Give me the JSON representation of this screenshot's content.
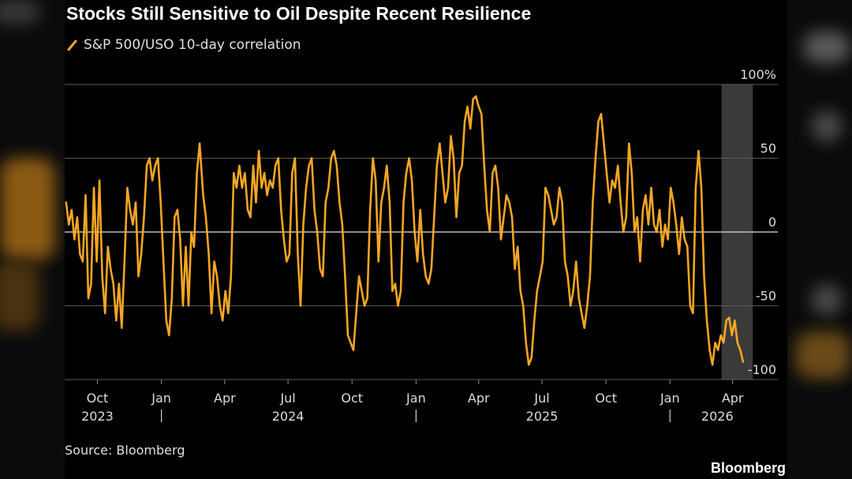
{
  "chart_data": {
    "type": "line",
    "title": "Stocks Still Sensitive to Oil Despite Recent Resilience",
    "legend": "S&P 500/USO 10-day correlation",
    "source": "Source: Bloomberg",
    "brand": "Bloomberg",
    "ylim": [
      -100,
      100
    ],
    "yticks": [
      {
        "value": 100,
        "label": "100%"
      },
      {
        "value": 50,
        "label": "50"
      },
      {
        "value": 0,
        "label": "0"
      },
      {
        "value": -50,
        "label": "-50"
      },
      {
        "value": -100,
        "label": "-100"
      }
    ],
    "xlim": [
      "2023-08-15",
      "2026-06-05"
    ],
    "month_ticks": [
      {
        "date": "2023-10-01",
        "label": "Oct"
      },
      {
        "date": "2024-01-01",
        "label": "Jan"
      },
      {
        "date": "2024-04-01",
        "label": "Apr"
      },
      {
        "date": "2024-07-01",
        "label": "Jul"
      },
      {
        "date": "2024-10-01",
        "label": "Oct"
      },
      {
        "date": "2025-01-01",
        "label": "Jan"
      },
      {
        "date": "2025-04-01",
        "label": "Apr"
      },
      {
        "date": "2025-07-01",
        "label": "Jul"
      },
      {
        "date": "2025-10-01",
        "label": "Oct"
      },
      {
        "date": "2026-01-01",
        "label": "Jan"
      },
      {
        "date": "2026-04-01",
        "label": "Apr"
      }
    ],
    "year_labels": [
      {
        "date": "2023-10-01",
        "label": "2023"
      },
      {
        "date": "2024-07-01",
        "label": "2024"
      },
      {
        "date": "2025-07-01",
        "label": "2025"
      },
      {
        "date": "2026-03-10",
        "label": "2026"
      }
    ],
    "year_dividers": [
      "2024-01-01",
      "2025-01-01",
      "2026-01-01"
    ],
    "shaded_range": [
      "2026-03-16",
      "2026-04-30"
    ],
    "series": [
      {
        "color": "#f5a623",
        "points": [
          [
            "2023-08-17",
            20
          ],
          [
            "2023-08-21",
            5
          ],
          [
            "2023-08-25",
            15
          ],
          [
            "2023-08-29",
            -5
          ],
          [
            "2023-09-02",
            10
          ],
          [
            "2023-09-06",
            -15
          ],
          [
            "2023-09-10",
            -20
          ],
          [
            "2023-09-14",
            25
          ],
          [
            "2023-09-18",
            -45
          ],
          [
            "2023-09-22",
            -35
          ],
          [
            "2023-09-26",
            30
          ],
          [
            "2023-09-30",
            -20
          ],
          [
            "2023-10-04",
            35
          ],
          [
            "2023-10-08",
            -30
          ],
          [
            "2023-10-12",
            -55
          ],
          [
            "2023-10-16",
            -10
          ],
          [
            "2023-10-20",
            -25
          ],
          [
            "2023-10-24",
            -35
          ],
          [
            "2023-10-28",
            -60
          ],
          [
            "2023-11-01",
            -35
          ],
          [
            "2023-11-05",
            -65
          ],
          [
            "2023-11-09",
            -20
          ],
          [
            "2023-11-13",
            30
          ],
          [
            "2023-11-17",
            15
          ],
          [
            "2023-11-21",
            5
          ],
          [
            "2023-11-25",
            20
          ],
          [
            "2023-11-29",
            -30
          ],
          [
            "2023-12-03",
            -15
          ],
          [
            "2023-12-07",
            10
          ],
          [
            "2023-12-11",
            45
          ],
          [
            "2023-12-15",
            50
          ],
          [
            "2023-12-19",
            35
          ],
          [
            "2023-12-23",
            45
          ],
          [
            "2023-12-27",
            50
          ],
          [
            "2023-12-31",
            20
          ],
          [
            "2024-01-04",
            -20
          ],
          [
            "2024-01-08",
            -60
          ],
          [
            "2024-01-12",
            -70
          ],
          [
            "2024-01-16",
            -45
          ],
          [
            "2024-01-20",
            10
          ],
          [
            "2024-01-24",
            15
          ],
          [
            "2024-01-28",
            -5
          ],
          [
            "2024-02-01",
            -50
          ],
          [
            "2024-02-05",
            -10
          ],
          [
            "2024-02-09",
            -50
          ],
          [
            "2024-02-13",
            0
          ],
          [
            "2024-02-17",
            -10
          ],
          [
            "2024-02-21",
            40
          ],
          [
            "2024-02-25",
            60
          ],
          [
            "2024-03-01",
            25
          ],
          [
            "2024-03-05",
            10
          ],
          [
            "2024-03-09",
            -15
          ],
          [
            "2024-03-13",
            -55
          ],
          [
            "2024-03-17",
            -20
          ],
          [
            "2024-03-21",
            -30
          ],
          [
            "2024-03-25",
            -50
          ],
          [
            "2024-03-29",
            -60
          ],
          [
            "2024-04-02",
            -40
          ],
          [
            "2024-04-06",
            -55
          ],
          [
            "2024-04-10",
            -30
          ],
          [
            "2024-04-14",
            40
          ],
          [
            "2024-04-18",
            30
          ],
          [
            "2024-04-22",
            45
          ],
          [
            "2024-04-26",
            30
          ],
          [
            "2024-04-30",
            40
          ],
          [
            "2024-05-04",
            15
          ],
          [
            "2024-05-08",
            10
          ],
          [
            "2024-05-12",
            45
          ],
          [
            "2024-05-16",
            20
          ],
          [
            "2024-05-20",
            55
          ],
          [
            "2024-05-24",
            30
          ],
          [
            "2024-05-28",
            40
          ],
          [
            "2024-06-01",
            25
          ],
          [
            "2024-06-05",
            35
          ],
          [
            "2024-06-09",
            30
          ],
          [
            "2024-06-13",
            45
          ],
          [
            "2024-06-17",
            50
          ],
          [
            "2024-06-21",
            15
          ],
          [
            "2024-06-25",
            -5
          ],
          [
            "2024-06-29",
            -20
          ],
          [
            "2024-07-03",
            -15
          ],
          [
            "2024-07-07",
            40
          ],
          [
            "2024-07-11",
            50
          ],
          [
            "2024-07-15",
            -15
          ],
          [
            "2024-07-19",
            -50
          ],
          [
            "2024-07-23",
            5
          ],
          [
            "2024-07-27",
            30
          ],
          [
            "2024-07-31",
            45
          ],
          [
            "2024-08-04",
            50
          ],
          [
            "2024-08-08",
            15
          ],
          [
            "2024-08-12",
            0
          ],
          [
            "2024-08-16",
            -25
          ],
          [
            "2024-08-20",
            -30
          ],
          [
            "2024-08-24",
            20
          ],
          [
            "2024-08-28",
            30
          ],
          [
            "2024-09-01",
            50
          ],
          [
            "2024-09-05",
            55
          ],
          [
            "2024-09-09",
            45
          ],
          [
            "2024-09-13",
            20
          ],
          [
            "2024-09-17",
            5
          ],
          [
            "2024-09-21",
            -30
          ],
          [
            "2024-09-25",
            -70
          ],
          [
            "2024-09-29",
            -75
          ],
          [
            "2024-10-03",
            -80
          ],
          [
            "2024-10-07",
            -55
          ],
          [
            "2024-10-11",
            -30
          ],
          [
            "2024-10-15",
            -40
          ],
          [
            "2024-10-19",
            -50
          ],
          [
            "2024-10-23",
            -45
          ],
          [
            "2024-10-27",
            15
          ],
          [
            "2024-10-31",
            50
          ],
          [
            "2024-11-04",
            35
          ],
          [
            "2024-11-08",
            -20
          ],
          [
            "2024-11-12",
            20
          ],
          [
            "2024-11-16",
            30
          ],
          [
            "2024-11-20",
            45
          ],
          [
            "2024-11-24",
            20
          ],
          [
            "2024-11-28",
            -40
          ],
          [
            "2024-12-02",
            -35
          ],
          [
            "2024-12-06",
            -50
          ],
          [
            "2024-12-10",
            -40
          ],
          [
            "2024-12-14",
            20
          ],
          [
            "2024-12-18",
            40
          ],
          [
            "2024-12-22",
            50
          ],
          [
            "2024-12-26",
            35
          ],
          [
            "2024-12-30",
            0
          ],
          [
            "2025-01-03",
            -20
          ],
          [
            "2025-01-07",
            15
          ],
          [
            "2025-01-11",
            -15
          ],
          [
            "2025-01-15",
            -30
          ],
          [
            "2025-01-19",
            -35
          ],
          [
            "2025-01-23",
            -25
          ],
          [
            "2025-01-27",
            10
          ],
          [
            "2025-01-31",
            45
          ],
          [
            "2025-02-04",
            60
          ],
          [
            "2025-02-08",
            40
          ],
          [
            "2025-02-12",
            20
          ],
          [
            "2025-02-16",
            30
          ],
          [
            "2025-02-20",
            65
          ],
          [
            "2025-02-24",
            50
          ],
          [
            "2025-02-28",
            10
          ],
          [
            "2025-03-04",
            40
          ],
          [
            "2025-03-08",
            45
          ],
          [
            "2025-03-12",
            75
          ],
          [
            "2025-03-16",
            85
          ],
          [
            "2025-03-20",
            70
          ],
          [
            "2025-03-24",
            90
          ],
          [
            "2025-03-28",
            92
          ],
          [
            "2025-04-01",
            85
          ],
          [
            "2025-04-05",
            80
          ],
          [
            "2025-04-09",
            45
          ],
          [
            "2025-04-13",
            15
          ],
          [
            "2025-04-17",
            0
          ],
          [
            "2025-04-21",
            40
          ],
          [
            "2025-04-25",
            45
          ],
          [
            "2025-04-29",
            30
          ],
          [
            "2025-05-03",
            -5
          ],
          [
            "2025-05-07",
            10
          ],
          [
            "2025-05-11",
            25
          ],
          [
            "2025-05-15",
            20
          ],
          [
            "2025-05-19",
            10
          ],
          [
            "2025-05-23",
            -25
          ],
          [
            "2025-05-27",
            -10
          ],
          [
            "2025-05-31",
            -40
          ],
          [
            "2025-06-04",
            -50
          ],
          [
            "2025-06-08",
            -75
          ],
          [
            "2025-06-12",
            -90
          ],
          [
            "2025-06-16",
            -85
          ],
          [
            "2025-06-20",
            -60
          ],
          [
            "2025-06-24",
            -40
          ],
          [
            "2025-06-28",
            -30
          ],
          [
            "2025-07-02",
            -20
          ],
          [
            "2025-07-06",
            30
          ],
          [
            "2025-07-10",
            25
          ],
          [
            "2025-07-14",
            15
          ],
          [
            "2025-07-18",
            5
          ],
          [
            "2025-07-22",
            10
          ],
          [
            "2025-07-26",
            30
          ],
          [
            "2025-07-30",
            20
          ],
          [
            "2025-08-03",
            -20
          ],
          [
            "2025-08-07",
            -30
          ],
          [
            "2025-08-11",
            -50
          ],
          [
            "2025-08-15",
            -40
          ],
          [
            "2025-08-19",
            -20
          ],
          [
            "2025-08-23",
            -45
          ],
          [
            "2025-08-27",
            -55
          ],
          [
            "2025-08-31",
            -65
          ],
          [
            "2025-09-04",
            -50
          ],
          [
            "2025-09-08",
            -30
          ],
          [
            "2025-09-12",
            20
          ],
          [
            "2025-09-16",
            50
          ],
          [
            "2025-09-20",
            75
          ],
          [
            "2025-09-24",
            80
          ],
          [
            "2025-09-28",
            60
          ],
          [
            "2025-10-02",
            40
          ],
          [
            "2025-10-06",
            20
          ],
          [
            "2025-10-10",
            35
          ],
          [
            "2025-10-14",
            30
          ],
          [
            "2025-10-18",
            45
          ],
          [
            "2025-10-22",
            20
          ],
          [
            "2025-10-26",
            0
          ],
          [
            "2025-10-30",
            10
          ],
          [
            "2025-11-03",
            60
          ],
          [
            "2025-11-07",
            40
          ],
          [
            "2025-11-11",
            0
          ],
          [
            "2025-11-15",
            10
          ],
          [
            "2025-11-19",
            -20
          ],
          [
            "2025-11-23",
            15
          ],
          [
            "2025-11-27",
            25
          ],
          [
            "2025-12-01",
            5
          ],
          [
            "2025-12-05",
            30
          ],
          [
            "2025-12-09",
            5
          ],
          [
            "2025-12-13",
            0
          ],
          [
            "2025-12-17",
            15
          ],
          [
            "2025-12-21",
            -10
          ],
          [
            "2025-12-25",
            5
          ],
          [
            "2025-12-29",
            -5
          ],
          [
            "2026-01-02",
            30
          ],
          [
            "2026-01-06",
            20
          ],
          [
            "2026-01-10",
            5
          ],
          [
            "2026-01-14",
            -15
          ],
          [
            "2026-01-18",
            10
          ],
          [
            "2026-01-22",
            -5
          ],
          [
            "2026-01-26",
            -10
          ],
          [
            "2026-01-30",
            -50
          ],
          [
            "2026-02-03",
            -55
          ],
          [
            "2026-02-07",
            30
          ],
          [
            "2026-02-11",
            55
          ],
          [
            "2026-02-15",
            30
          ],
          [
            "2026-02-19",
            -30
          ],
          [
            "2026-02-23",
            -60
          ],
          [
            "2026-02-27",
            -80
          ],
          [
            "2026-03-03",
            -90
          ],
          [
            "2026-03-07",
            -75
          ],
          [
            "2026-03-11",
            -80
          ],
          [
            "2026-03-15",
            -70
          ],
          [
            "2026-03-19",
            -75
          ],
          [
            "2026-03-23",
            -60
          ],
          [
            "2026-03-27",
            -58
          ],
          [
            "2026-03-31",
            -70
          ],
          [
            "2026-04-04",
            -60
          ],
          [
            "2026-04-08",
            -75
          ],
          [
            "2026-04-12",
            -80
          ],
          [
            "2026-04-16",
            -88
          ]
        ]
      }
    ]
  }
}
